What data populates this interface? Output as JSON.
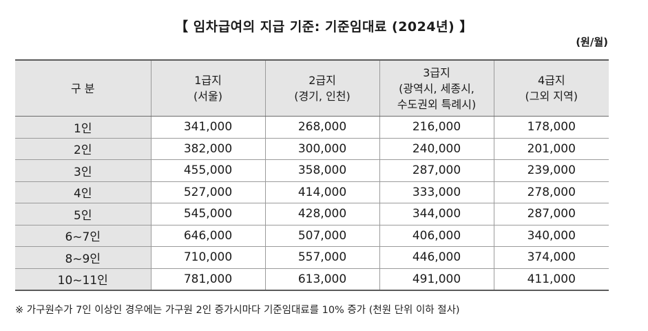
{
  "title": "【 임차급여의 지급 기준: 기준임대료 (2024년) 】",
  "unit": "(원/월)",
  "table": {
    "headers": [
      {
        "lines": [
          "구 분"
        ]
      },
      {
        "lines": [
          "1급지",
          "(서울)"
        ]
      },
      {
        "lines": [
          "2급지",
          "(경기, 인천)"
        ]
      },
      {
        "lines": [
          "3급지",
          "(광역시, 세종시,",
          "수도권외 특례시)"
        ]
      },
      {
        "lines": [
          "4급지",
          "(그외 지역)"
        ]
      }
    ],
    "rows": [
      [
        "1인",
        "341,000",
        "268,000",
        "216,000",
        "178,000"
      ],
      [
        "2인",
        "382,000",
        "300,000",
        "240,000",
        "201,000"
      ],
      [
        "3인",
        "455,000",
        "358,000",
        "287,000",
        "239,000"
      ],
      [
        "4인",
        "527,000",
        "414,000",
        "333,000",
        "278,000"
      ],
      [
        "5인",
        "545,000",
        "428,000",
        "344,000",
        "287,000"
      ],
      [
        "6~7인",
        "646,000",
        "507,000",
        "406,000",
        "340,000"
      ],
      [
        "8~9인",
        "710,000",
        "557,000",
        "446,000",
        "374,000"
      ],
      [
        "10~11인",
        "781,000",
        "613,000",
        "491,000",
        "411,000"
      ]
    ]
  },
  "note": "※ 가구원수가 7인 이상인 경우에는 가구원 2인 증가시마다 기준임대료를 10% 증가 (천원 단위 이하 절사)"
}
